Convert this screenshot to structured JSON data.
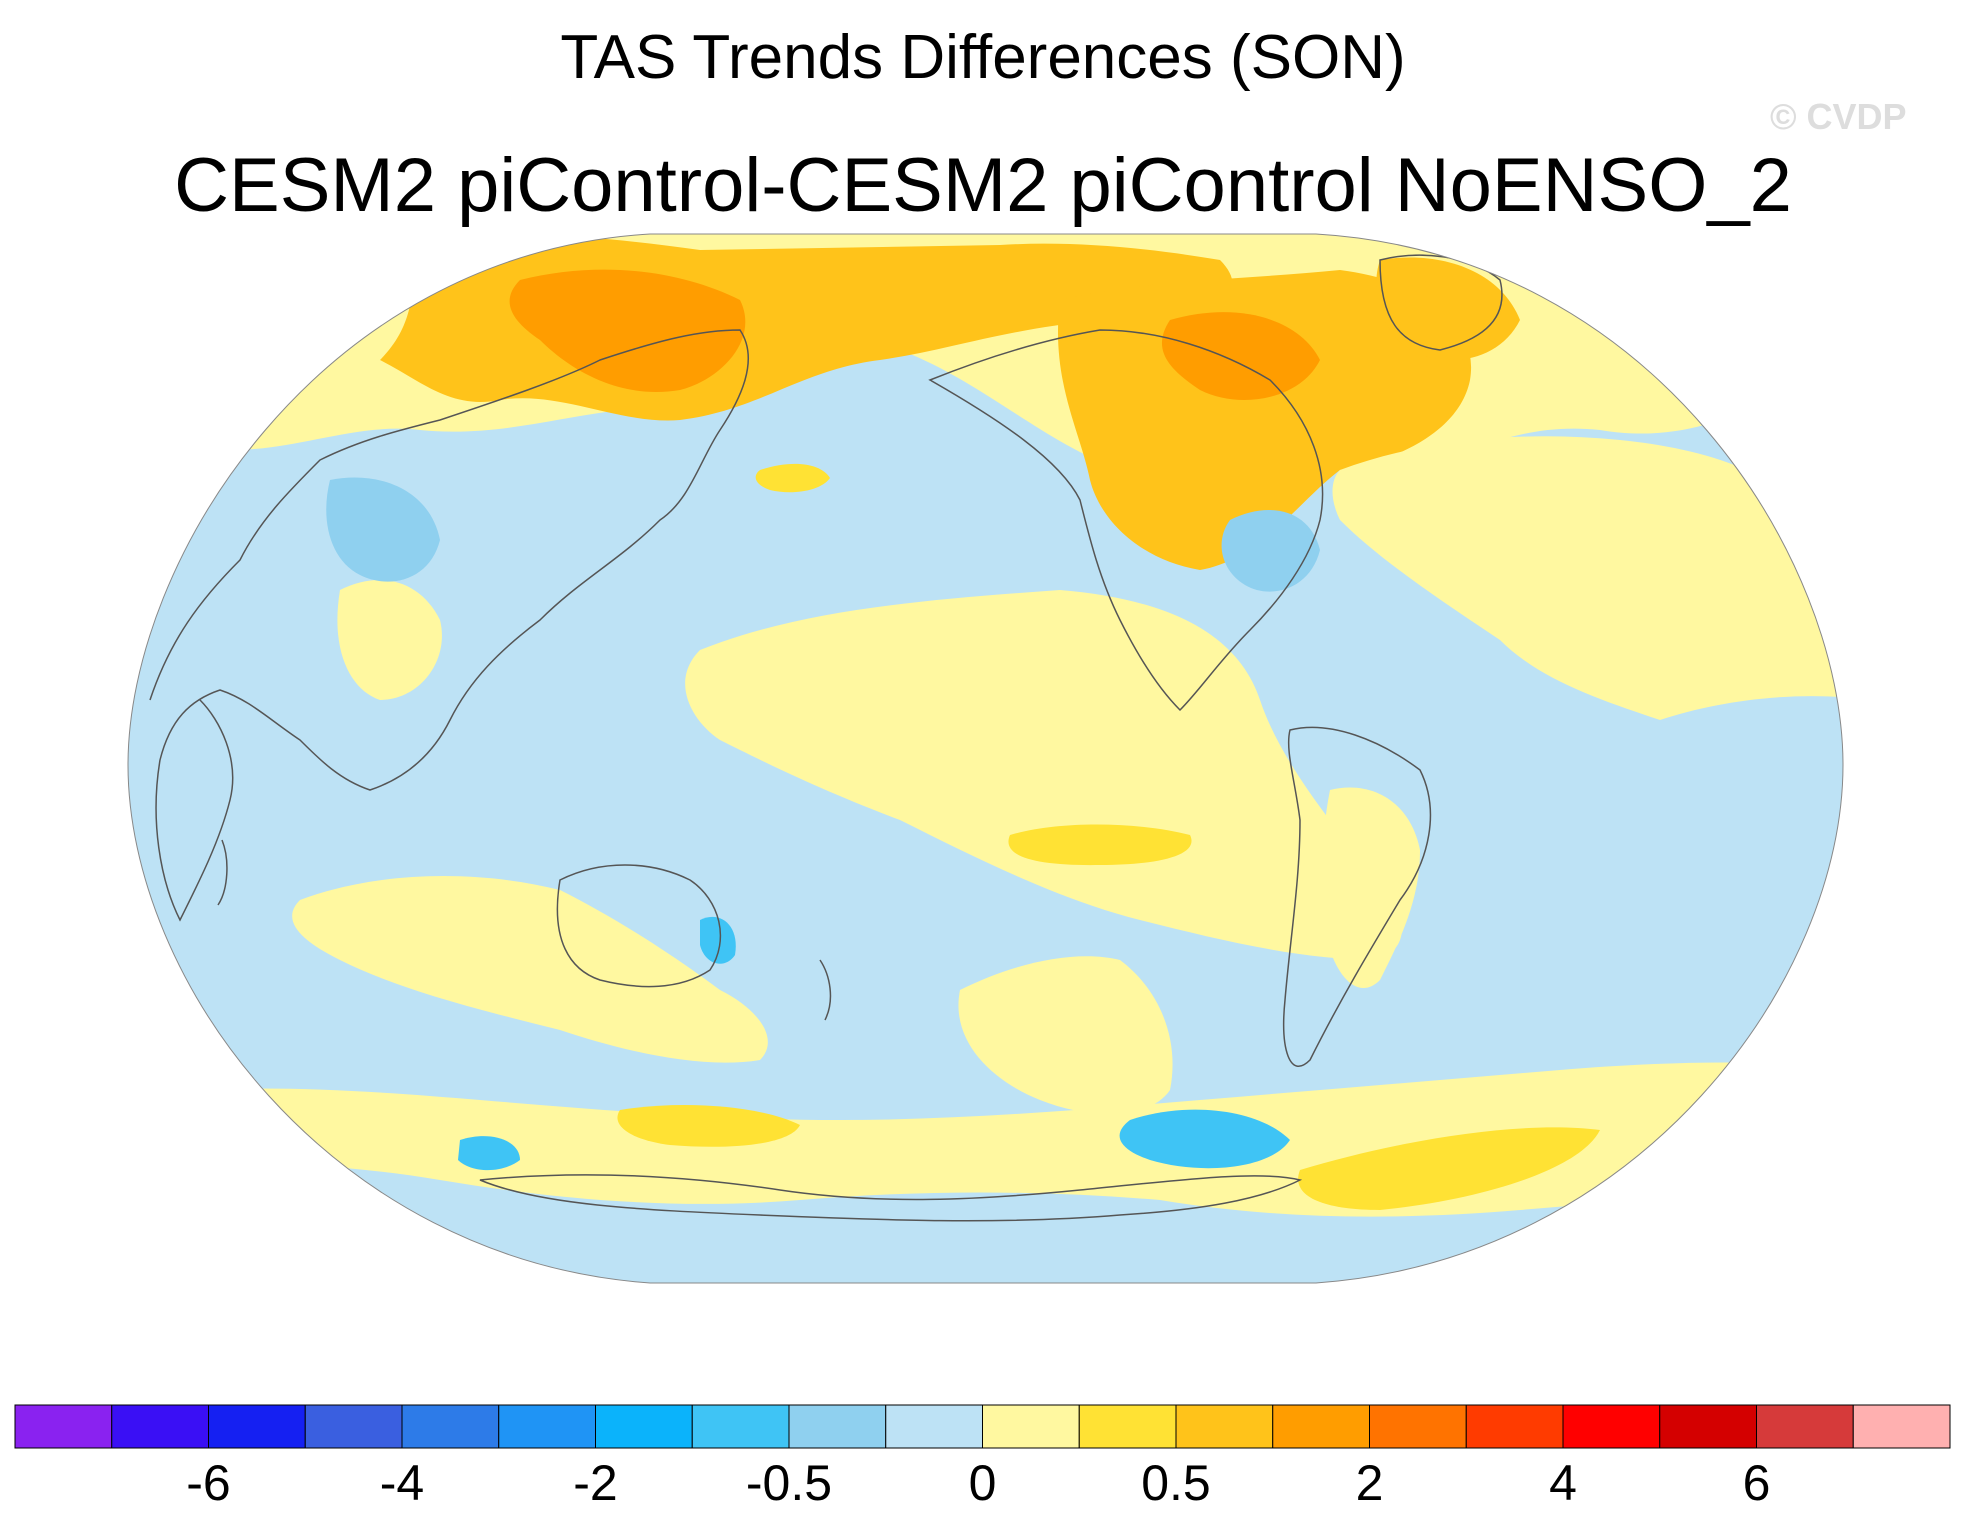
{
  "title": "TAS Trends Differences (SON)",
  "subtitle": "CESM2 piControl-CESM2 piControl NoENSO_2",
  "watermark": "© CVDP",
  "colorbar": {
    "colors": [
      "#8a22f0",
      "#3a0ff5",
      "#1520f2",
      "#3a5fe0",
      "#2d7be8",
      "#1f94f5",
      "#0bb3fb",
      "#3fc4f5",
      "#8fd0ef",
      "#bde2f5",
      "#fff8a0",
      "#ffe234",
      "#ffc31a",
      "#ff9d00",
      "#ff7300",
      "#ff3b00",
      "#ff0000",
      "#d40000",
      "#d63a3a",
      "#ffb0b0"
    ],
    "tick_labels": [
      "-6",
      "-4",
      "-2",
      "-0.5",
      "0",
      "0.5",
      "2",
      "4",
      "6"
    ],
    "tick_boundaries": [
      2,
      4,
      6,
      8,
      10,
      12,
      14,
      16,
      18
    ]
  },
  "map": {
    "projection": "Robinson",
    "ocean_color": "#bde2f5",
    "coastline_color": "#555555"
  }
}
